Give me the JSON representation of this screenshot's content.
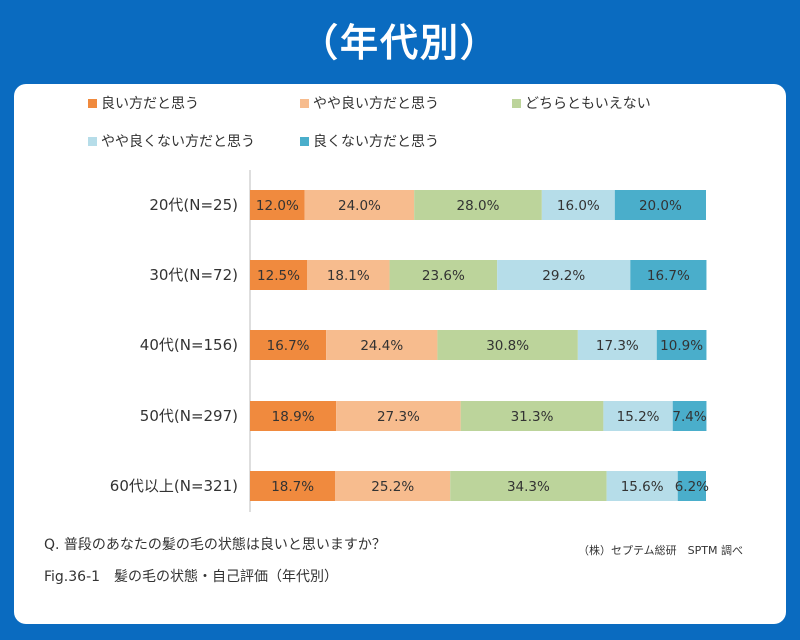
{
  "header": {
    "title": "（年代別）"
  },
  "question": "Q. 普段のあなたの髪の毛の状態は良いと思いますか？",
  "credit": "（株）セプテム総研　SPTM 調べ",
  "caption": "Fig.36-1　髪の毛の状態・自己評価（年代別）",
  "chart_data": {
    "type": "bar",
    "orientation": "horizontal",
    "stacked": true,
    "percent_stacked": true,
    "categories": [
      "20代(N=25)",
      "30代(N=72)",
      "40代(N=156)",
      "50代(N=297)",
      "60代以上(N=321)"
    ],
    "series": [
      {
        "name": "良い方だと思う",
        "color": "#f08a3e",
        "values": [
          12.0,
          12.5,
          16.7,
          18.9,
          18.7
        ],
        "labels": [
          "12.0%",
          "12.5%",
          "16.7%",
          "18.9%",
          "18.7%"
        ]
      },
      {
        "name": "やや良い方だと思う",
        "color": "#f7bc8e",
        "values": [
          24.0,
          18.1,
          24.4,
          27.3,
          25.2
        ],
        "labels": [
          "24.0%",
          "18.1%",
          "24.4%",
          "27.3%",
          "25.2%"
        ]
      },
      {
        "name": "どちらともいえない",
        "color": "#bcd49b",
        "values": [
          28.0,
          23.6,
          30.8,
          31.3,
          34.3
        ],
        "labels": [
          "28.0%",
          "23.6%",
          "30.8%",
          "31.3%",
          "34.3%"
        ]
      },
      {
        "name": "やや良くない方だと思う",
        "color": "#b6dde9",
        "values": [
          16.0,
          29.2,
          17.3,
          15.2,
          15.6
        ],
        "labels": [
          "16.0%",
          "29.2%",
          "17.3%",
          "15.2%",
          "15.6%"
        ]
      },
      {
        "name": "良くない方だと思う",
        "color": "#4aaecb",
        "values": [
          20.0,
          16.7,
          10.9,
          7.4,
          6.2
        ],
        "labels": [
          "20.0%",
          "16.7%",
          "10.9%",
          "7.4%",
          "6.2%"
        ]
      }
    ],
    "xlim": [
      0,
      100
    ],
    "grid": false,
    "legend_position": "top"
  }
}
